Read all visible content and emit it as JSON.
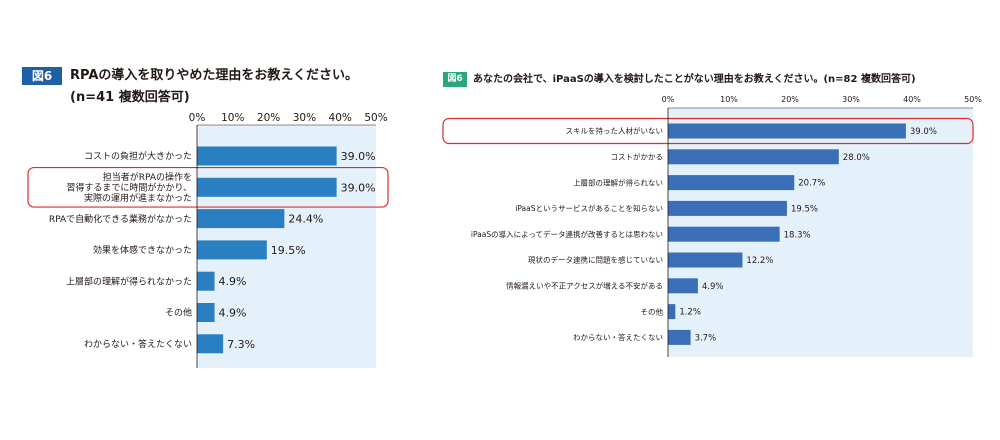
{
  "figures": [
    {
      "badge": "図6",
      "badge_color": "#1e5fa8",
      "title_line1": "RPAの導入を取りやめた理由をお教えください。",
      "title_line2": "(n=41 複数回答可)"
    },
    {
      "badge": "図6",
      "badge_color": "#2aa87a",
      "title_line1": "あなたの会社で、iPaaSの導入を検討したことがない理由をお教えください。(n=82 複数回答可)"
    }
  ],
  "chart_data": [
    {
      "type": "bar",
      "orientation": "horizontal",
      "x_ticks": [
        "0%",
        "10%",
        "20%",
        "30%",
        "40%",
        "50%"
      ],
      "xlim": [
        0,
        50
      ],
      "categories": [
        [
          "コストの負担が大きかった"
        ],
        [
          "担当者がRPAの操作を",
          "習得するまでに時間がかかり、",
          "実際の運用が進まなかった"
        ],
        [
          "RPAで自動化できる業務がなかった"
        ],
        [
          "効果を体感できなかった"
        ],
        [
          "上層部の理解が得られなかった"
        ],
        [
          "その他"
        ],
        [
          "わからない・答えたくない"
        ]
      ],
      "values": [
        39.0,
        39.0,
        24.4,
        19.5,
        4.9,
        4.9,
        7.3
      ],
      "value_labels": [
        "39.0%",
        "39.0%",
        "24.4%",
        "19.5%",
        "4.9%",
        "4.9%",
        "7.3%"
      ],
      "highlighted_index": 1,
      "bar_color": "#2a7ec2",
      "plot_bg_color": "#e4f1fb",
      "highlight_color": "#d9302c"
    },
    {
      "type": "bar",
      "orientation": "horizontal",
      "x_ticks": [
        "0%",
        "10%",
        "20%",
        "30%",
        "40%",
        "50%"
      ],
      "xlim": [
        0,
        50
      ],
      "categories": [
        [
          "スキルを持った人材がいない"
        ],
        [
          "コストがかかる"
        ],
        [
          "上層部の理解が得られない"
        ],
        [
          "iPaaSというサービスがあることを知らない"
        ],
        [
          "iPaaSの導入によってデータ連携が改善するとは思わない"
        ],
        [
          "現状のデータ連携に問題を感じていない"
        ],
        [
          "情報漏えいや不正アクセスが増える不安がある"
        ],
        [
          "その他"
        ],
        [
          "わからない・答えたくない"
        ]
      ],
      "values": [
        39.0,
        28.0,
        20.7,
        19.5,
        18.3,
        12.2,
        4.9,
        1.2,
        3.7
      ],
      "value_labels": [
        "39.0%",
        "28.0%",
        "20.7%",
        "19.5%",
        "18.3%",
        "12.2%",
        "4.9%",
        "1.2%",
        "3.7%"
      ],
      "highlighted_index": 0,
      "bar_color": "#3a6fb8",
      "plot_bg_color": "#e4f1fb",
      "highlight_color": "#d9302c"
    }
  ]
}
